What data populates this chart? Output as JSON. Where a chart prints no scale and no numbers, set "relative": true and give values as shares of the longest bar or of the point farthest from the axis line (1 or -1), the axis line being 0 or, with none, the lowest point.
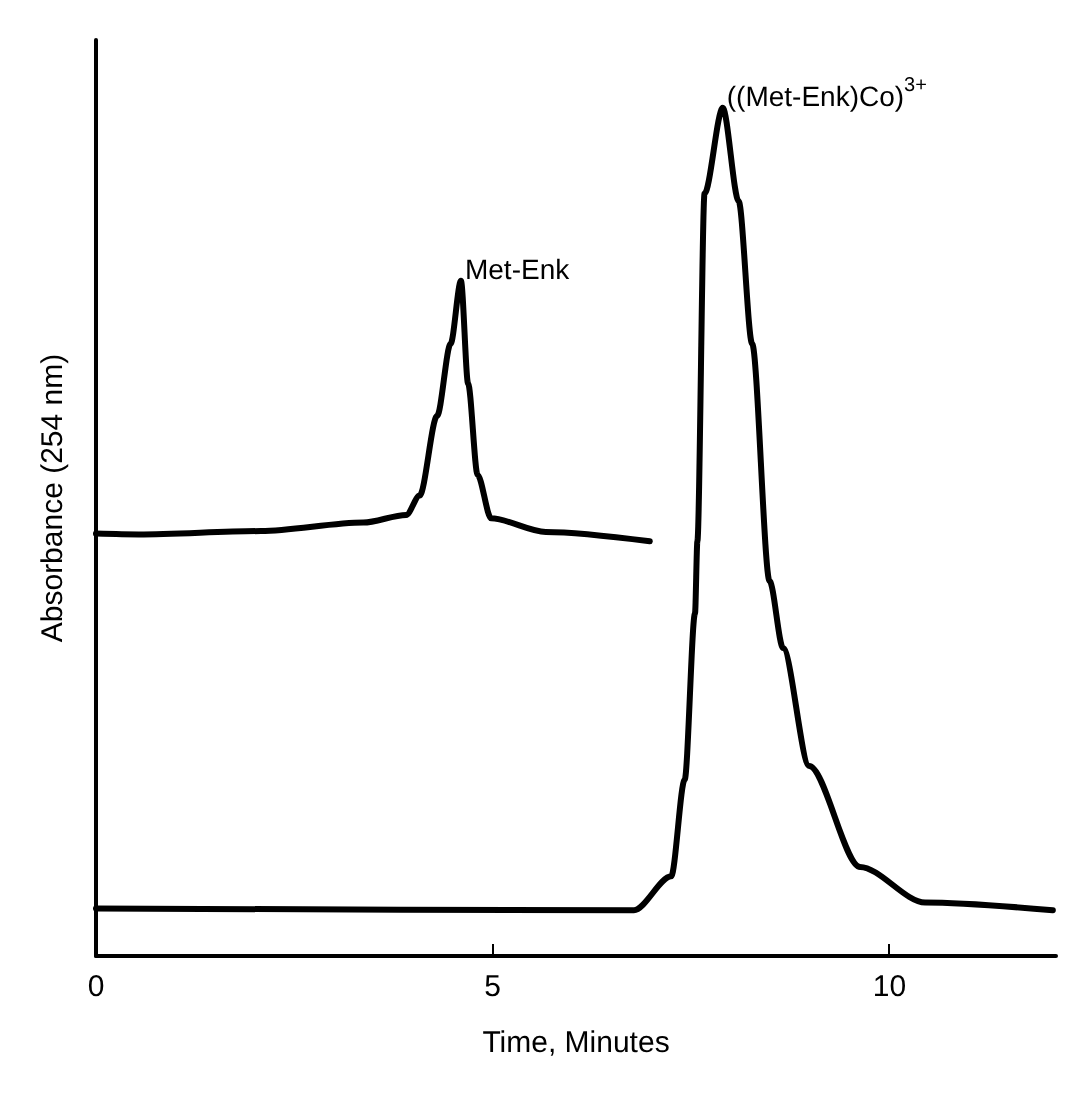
{
  "chart_data": {
    "type": "line",
    "relative": true,
    "xlabel": "Time, Minutes",
    "ylabel": "Absorbance (254 nm)",
    "xlim": [
      0,
      12.1
    ],
    "xticks": [
      0,
      5,
      10
    ],
    "grid": false,
    "marker": "none",
    "line_style": "solid",
    "series": [
      {
        "color": "#000000",
        "x": [
          0,
          0.54,
          2.08,
          3.37,
          3.91,
          4.08,
          4.3,
          4.47,
          4.6,
          4.69,
          4.81,
          4.98,
          5.67,
          6.98
        ],
        "values": [
          0.498,
          0.497,
          0.501,
          0.511,
          0.52,
          0.543,
          0.637,
          0.722,
          0.796,
          0.675,
          0.567,
          0.516,
          0.5,
          0.489
        ]
      },
      {
        "color": "#000000",
        "x": [
          0,
          6.78,
          7.25,
          7.42,
          7.55,
          7.58,
          7.67,
          7.9,
          8.1,
          8.27,
          8.49,
          8.66,
          8.99,
          9.63,
          10.45,
          12.06
        ],
        "values": [
          0.056,
          0.054,
          0.094,
          0.208,
          0.404,
          0.489,
          0.899,
          1,
          0.89,
          0.722,
          0.442,
          0.363,
          0.224,
          0.105,
          0.063,
          0.054
        ]
      }
    ],
    "annotations": [
      {
        "text": "Met-Enk",
        "x": 4.6,
        "y": 0.796
      },
      {
        "text": "((Met-Enk)Co)$^{3+}$",
        "x": 7.9,
        "y": 1
      }
    ]
  }
}
